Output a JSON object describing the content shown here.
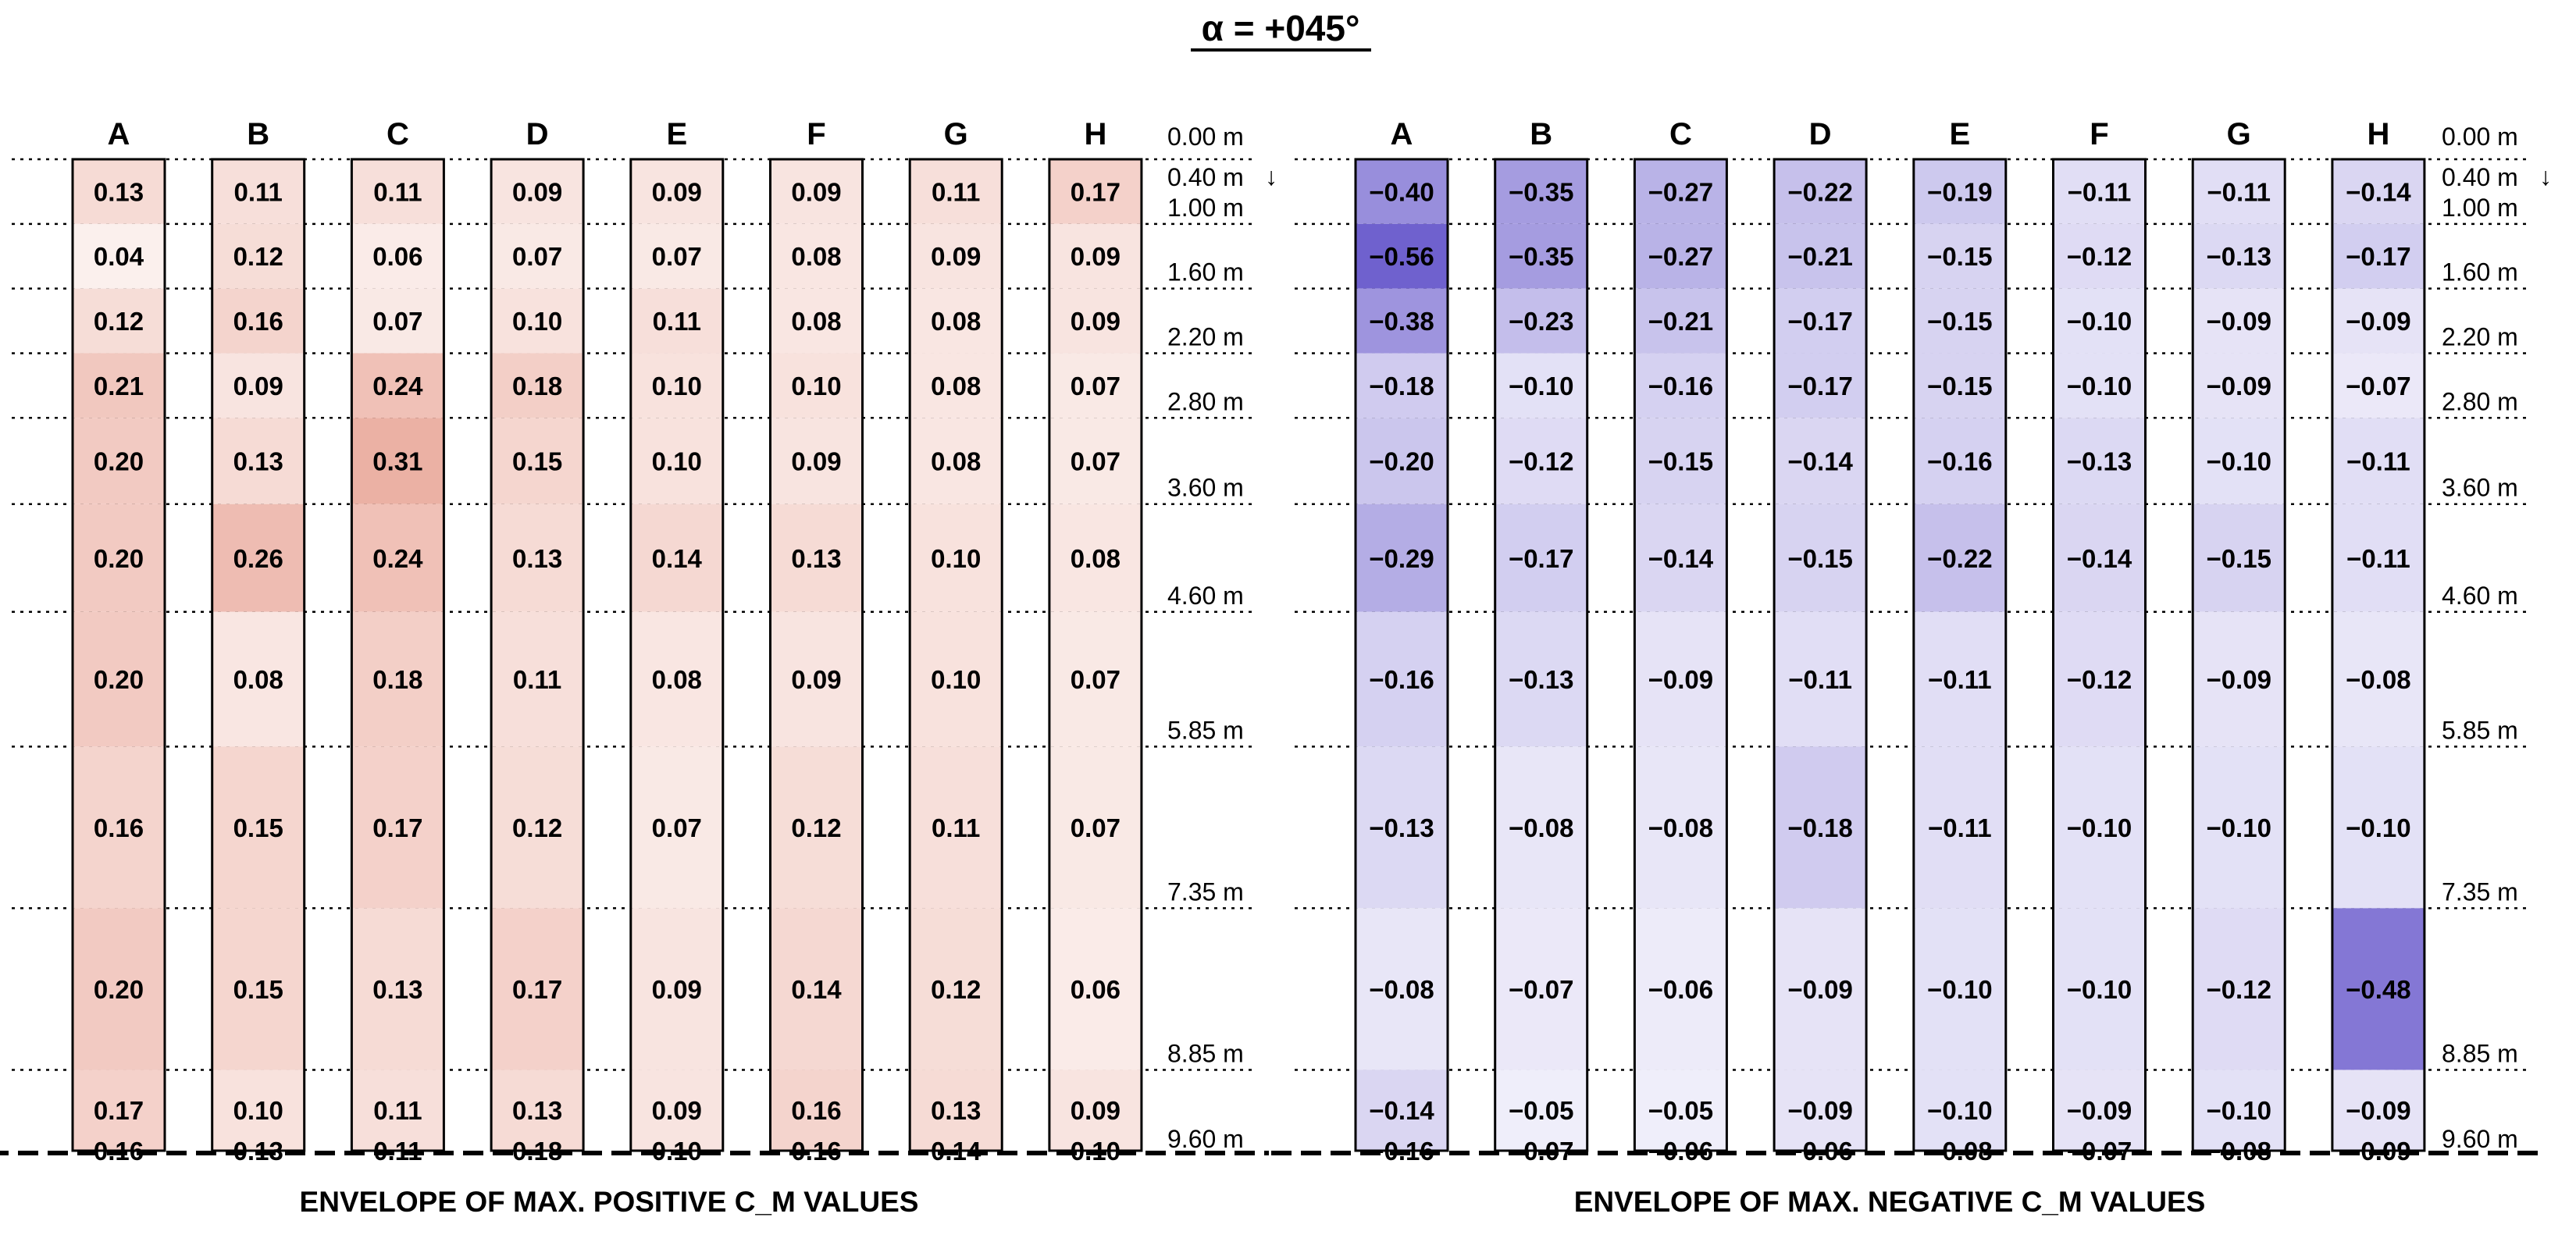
{
  "chart_data": {
    "type": "heatmap",
    "title": "α = +045°",
    "columns": [
      "A",
      "B",
      "C",
      "D",
      "E",
      "F",
      "G",
      "H"
    ],
    "levels": [
      "0.00 m",
      "0.40 m",
      "1.00 m",
      "1.60 m",
      "2.20 m",
      "2.80 m",
      "3.60 m",
      "4.60 m",
      "5.85 m",
      "7.35 m",
      "8.85 m",
      "9.60 m"
    ],
    "level_values_m": [
      0.0,
      0.4,
      1.0,
      1.6,
      2.2,
      2.8,
      3.6,
      4.6,
      5.85,
      7.35,
      8.85,
      9.6
    ],
    "arrow_symbol": "↓",
    "positive": {
      "label": "ENVELOPE OF MAX. POSITIVE C_M VALUES",
      "color_high": "#e0836f",
      "color_low": "#ffffff",
      "values": [
        [
          0.13,
          0.11,
          0.11,
          0.09,
          0.09,
          0.09,
          0.11,
          0.17
        ],
        [
          0.04,
          0.12,
          0.06,
          0.07,
          0.07,
          0.08,
          0.09,
          0.09
        ],
        [
          0.12,
          0.16,
          0.07,
          0.1,
          0.11,
          0.08,
          0.08,
          0.09
        ],
        [
          0.21,
          0.09,
          0.24,
          0.18,
          0.1,
          0.1,
          0.08,
          0.07
        ],
        [
          0.2,
          0.13,
          0.31,
          0.15,
          0.1,
          0.09,
          0.08,
          0.07
        ],
        [
          0.2,
          0.26,
          0.24,
          0.13,
          0.14,
          0.13,
          0.1,
          0.08
        ],
        [
          0.2,
          0.08,
          0.18,
          0.11,
          0.08,
          0.09,
          0.1,
          0.07
        ],
        [
          0.16,
          0.15,
          0.17,
          0.12,
          0.07,
          0.12,
          0.11,
          0.07
        ],
        [
          0.2,
          0.15,
          0.13,
          0.17,
          0.09,
          0.14,
          0.12,
          0.06
        ],
        [
          0.17,
          0.1,
          0.11,
          0.13,
          0.09,
          0.16,
          0.13,
          0.09
        ],
        [
          0.16,
          0.13,
          0.11,
          0.18,
          0.1,
          0.16,
          0.14,
          0.1
        ]
      ]
    },
    "negative": {
      "label": "ENVELOPE OF MAX. NEGATIVE C_M VALUES",
      "color_high": "#5f4fc8",
      "color_low": "#ffffff",
      "values": [
        [
          -0.4,
          -0.35,
          -0.27,
          -0.22,
          -0.19,
          -0.11,
          -0.11,
          -0.14
        ],
        [
          -0.56,
          -0.35,
          -0.27,
          -0.21,
          -0.15,
          -0.12,
          -0.13,
          -0.17
        ],
        [
          -0.38,
          -0.23,
          -0.21,
          -0.17,
          -0.15,
          -0.1,
          -0.09,
          -0.09
        ],
        [
          -0.18,
          -0.1,
          -0.16,
          -0.17,
          -0.15,
          -0.1,
          -0.09,
          -0.07
        ],
        [
          -0.2,
          -0.12,
          -0.15,
          -0.14,
          -0.16,
          -0.13,
          -0.1,
          -0.11
        ],
        [
          -0.29,
          -0.17,
          -0.14,
          -0.15,
          -0.22,
          -0.14,
          -0.15,
          -0.11
        ],
        [
          -0.16,
          -0.13,
          -0.09,
          -0.11,
          -0.11,
          -0.12,
          -0.09,
          -0.08
        ],
        [
          -0.13,
          -0.08,
          -0.08,
          -0.18,
          -0.11,
          -0.1,
          -0.1,
          -0.1
        ],
        [
          -0.08,
          -0.07,
          -0.06,
          -0.09,
          -0.1,
          -0.1,
          -0.12,
          -0.48
        ],
        [
          -0.14,
          -0.05,
          -0.05,
          -0.09,
          -0.1,
          -0.09,
          -0.1,
          -0.09
        ],
        [
          -0.16,
          -0.07,
          -0.06,
          -0.06,
          -0.08,
          -0.07,
          -0.08,
          -0.09
        ]
      ]
    }
  }
}
